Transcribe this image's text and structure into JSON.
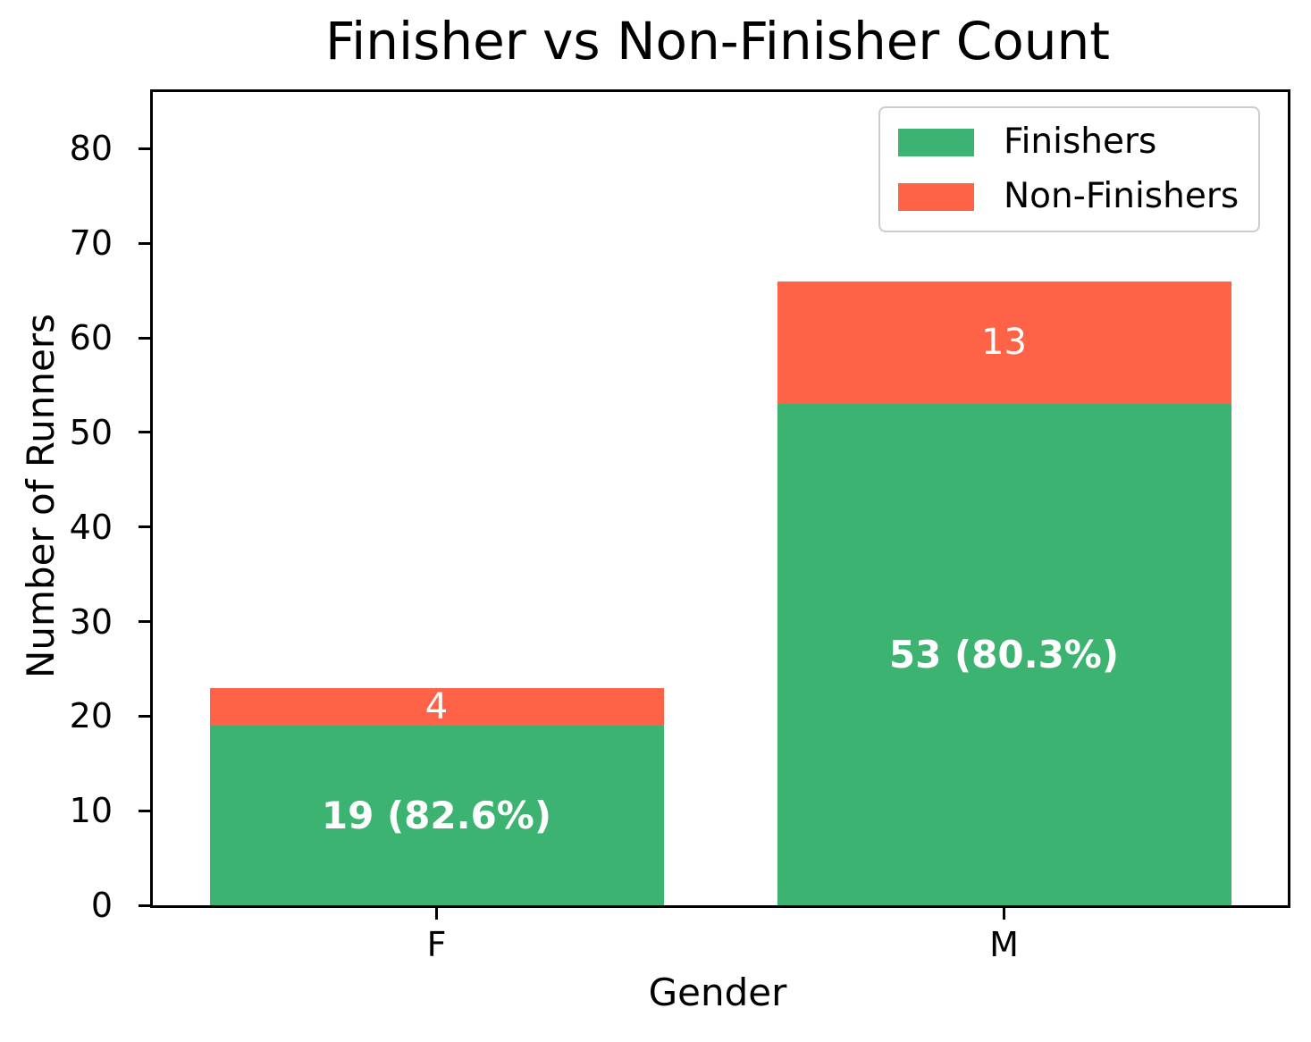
{
  "title": "Finisher vs Non-Finisher Count",
  "xlabel": "Gender",
  "ylabel": "Number of Runners",
  "colors": {
    "finishers": "#3CB371",
    "non_finishers": "#FF6347",
    "axis": "#000000",
    "background": "#ffffff",
    "legend_border": "#cccccc",
    "bar_label_text": "#ffffff"
  },
  "legend": {
    "position": "upper right",
    "items": [
      {
        "label": "Finishers",
        "color": "#3CB371"
      },
      {
        "label": "Non-Finishers",
        "color": "#FF6347"
      }
    ]
  },
  "chart_data": {
    "type": "bar",
    "stacked": true,
    "title": "Finisher vs Non-Finisher Count",
    "xlabel": "Gender",
    "ylabel": "Number of Runners",
    "categories": [
      "F",
      "M"
    ],
    "series": [
      {
        "name": "Finishers",
        "color": "#3CB371",
        "values": [
          19,
          53
        ],
        "bar_labels": [
          "19 (82.6%)",
          "53 (80.3%)"
        ],
        "label_bold": true
      },
      {
        "name": "Non-Finishers",
        "color": "#FF6347",
        "values": [
          4,
          13
        ],
        "bar_labels": [
          "4",
          "13"
        ],
        "label_bold": false
      }
    ],
    "totals": [
      23,
      66
    ],
    "yticks": [
      0,
      10,
      20,
      30,
      40,
      50,
      60,
      70,
      80
    ],
    "ylim": [
      0,
      86
    ],
    "bar_width_fraction": 0.8,
    "grid": false,
    "legend_position": "upper right"
  }
}
